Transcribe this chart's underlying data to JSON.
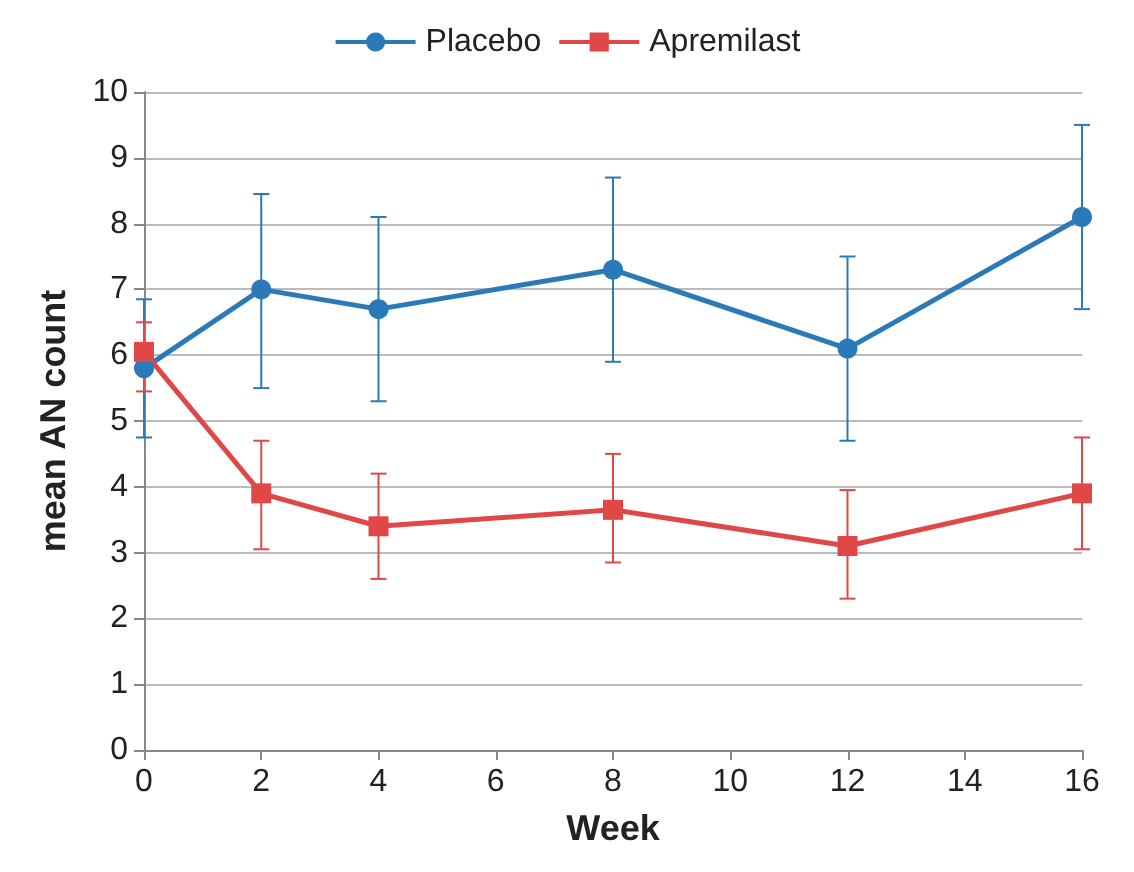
{
  "chart_data": {
    "type": "line",
    "xlabel": "Week",
    "ylabel": "mean AN count",
    "x": [
      0,
      2,
      4,
      8,
      12,
      16
    ],
    "xlim": [
      0,
      16
    ],
    "xticks": [
      0,
      2,
      4,
      6,
      8,
      10,
      12,
      14,
      16
    ],
    "ylim": [
      0,
      10
    ],
    "yticks": [
      0,
      1,
      2,
      3,
      4,
      5,
      6,
      7,
      8,
      9,
      10
    ],
    "grid": "y",
    "legend": "top",
    "series": [
      {
        "name": "Placebo",
        "color": "#2a7ab9",
        "marker": "circle",
        "values": [
          5.8,
          7.0,
          6.7,
          7.3,
          6.1,
          8.1
        ],
        "errors": [
          [
            4.75,
            6.85
          ],
          [
            5.5,
            8.45
          ],
          [
            5.3,
            8.1
          ],
          [
            5.9,
            8.7
          ],
          [
            4.7,
            7.5
          ],
          [
            6.7,
            9.5
          ]
        ]
      },
      {
        "name": "Apremilast",
        "color": "#e04848",
        "marker": "square",
        "values": [
          6.05,
          3.9,
          3.4,
          3.65,
          3.1,
          3.9
        ],
        "errors": [
          [
            5.45,
            6.5
          ],
          [
            3.05,
            4.7
          ],
          [
            2.6,
            4.2
          ],
          [
            2.85,
            4.5
          ],
          [
            2.3,
            3.95
          ],
          [
            3.05,
            4.75
          ]
        ]
      }
    ]
  }
}
